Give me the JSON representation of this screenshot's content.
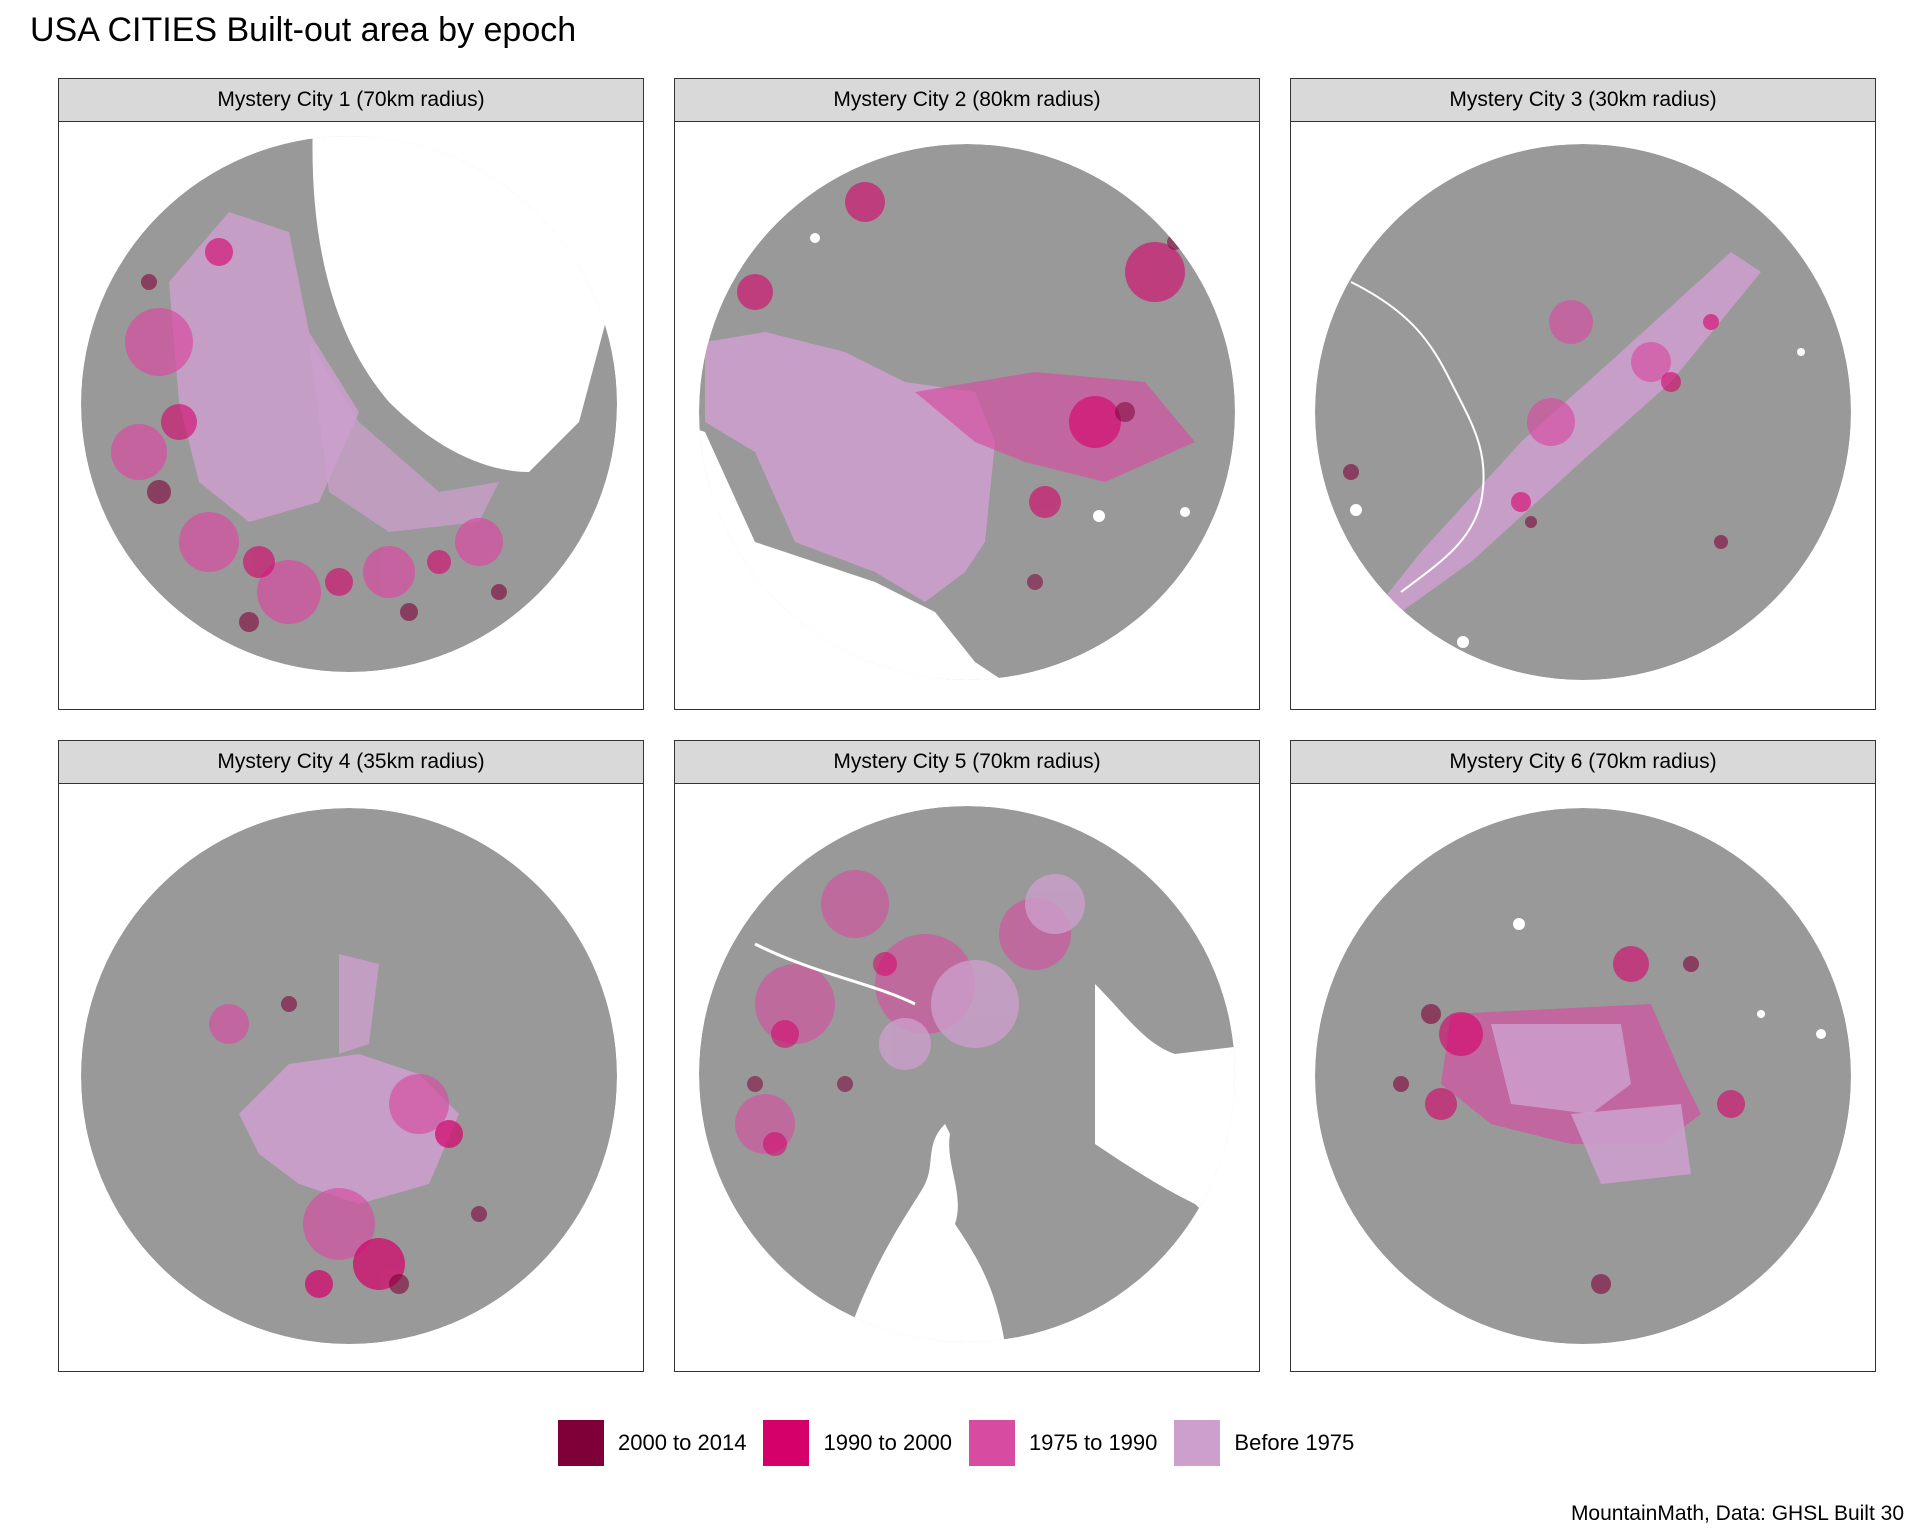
{
  "title": "USA CITIES Built-out area by epoch",
  "caption": "MountainMath, Data: GHSL Built 30",
  "colors": {
    "land": "#999999",
    "water": "#ffffff",
    "strip": "#d9d9d9",
    "panel_border": "#333333"
  },
  "panels": [
    {
      "label": "Mystery City 1 (70km radius)"
    },
    {
      "label": "Mystery City 2 (80km radius)"
    },
    {
      "label": "Mystery City 3 (30km radius)"
    },
    {
      "label": "Mystery City 4 (35km radius)"
    },
    {
      "label": "Mystery City 5 (70km radius)"
    },
    {
      "label": "Mystery City 6 (70km radius)"
    }
  ],
  "legend": [
    {
      "label": "2000 to 2014",
      "color": "#7f0038"
    },
    {
      "label": "1990 to 2000",
      "color": "#d5006a"
    },
    {
      "label": "1975 to 1990",
      "color": "#d74ba1"
    },
    {
      "label": "Before 1975",
      "color": "#cc9fcc"
    }
  ]
}
